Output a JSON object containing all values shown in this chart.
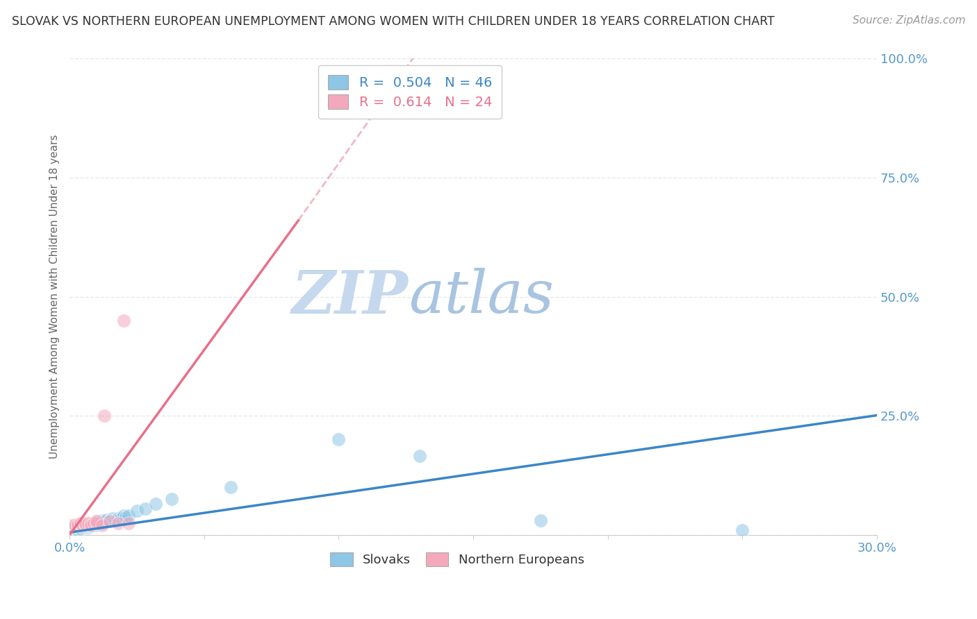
{
  "title": "SLOVAK VS NORTHERN EUROPEAN UNEMPLOYMENT AMONG WOMEN WITH CHILDREN UNDER 18 YEARS CORRELATION CHART",
  "source": "Source: ZipAtlas.com",
  "ylabel": "Unemployment Among Women with Children Under 18 years",
  "xlim": [
    0.0,
    0.3
  ],
  "ylim": [
    0.0,
    1.0
  ],
  "x_ticks": [
    0.0,
    0.05,
    0.1,
    0.15,
    0.2,
    0.25,
    0.3
  ],
  "x_tick_labels": [
    "0.0%",
    "",
    "",
    "",
    "",
    "",
    "30.0%"
  ],
  "y_ticks": [
    0.0,
    0.25,
    0.5,
    0.75,
    1.0
  ],
  "y_tick_labels": [
    "",
    "25.0%",
    "50.0%",
    "75.0%",
    "100.0%"
  ],
  "slovaks_R": "0.504",
  "slovaks_N": "46",
  "northern_R": "0.614",
  "northern_N": "24",
  "color_blue": "#8ec6e6",
  "color_pink": "#f4a8bc",
  "color_blue_line": "#3a86c8",
  "color_pink_line": "#e8708a",
  "color_axis_labels": "#5599cc",
  "color_title": "#333333",
  "color_watermark_zip": "#c5d8ee",
  "color_watermark_atlas": "#a8c4e0",
  "grid_color": "#e8e8e8",
  "background_color": "#ffffff",
  "slovaks_x": [
    0.001,
    0.001,
    0.002,
    0.002,
    0.003,
    0.003,
    0.003,
    0.004,
    0.004,
    0.004,
    0.005,
    0.005,
    0.005,
    0.006,
    0.006,
    0.007,
    0.007,
    0.007,
    0.008,
    0.008,
    0.009,
    0.009,
    0.01,
    0.01,
    0.011,
    0.012,
    0.012,
    0.013,
    0.014,
    0.015,
    0.016,
    0.017,
    0.018,
    0.019,
    0.02,
    0.021,
    0.022,
    0.025,
    0.028,
    0.032,
    0.038,
    0.06,
    0.1,
    0.13,
    0.175,
    0.25
  ],
  "slovaks_y": [
    0.01,
    0.015,
    0.012,
    0.018,
    0.015,
    0.02,
    0.01,
    0.012,
    0.018,
    0.022,
    0.015,
    0.02,
    0.025,
    0.018,
    0.022,
    0.015,
    0.02,
    0.025,
    0.018,
    0.022,
    0.02,
    0.025,
    0.022,
    0.028,
    0.025,
    0.025,
    0.03,
    0.028,
    0.032,
    0.03,
    0.035,
    0.03,
    0.035,
    0.035,
    0.04,
    0.038,
    0.04,
    0.05,
    0.055,
    0.065,
    0.075,
    0.1,
    0.2,
    0.165,
    0.03,
    0.01
  ],
  "northern_x": [
    0.001,
    0.001,
    0.002,
    0.002,
    0.003,
    0.003,
    0.004,
    0.004,
    0.005,
    0.005,
    0.006,
    0.006,
    0.007,
    0.008,
    0.008,
    0.009,
    0.01,
    0.01,
    0.012,
    0.013,
    0.015,
    0.018,
    0.02,
    0.022
  ],
  "northern_y": [
    0.015,
    0.02,
    0.018,
    0.022,
    0.02,
    0.022,
    0.022,
    0.025,
    0.018,
    0.022,
    0.022,
    0.025,
    0.025,
    0.025,
    0.02,
    0.025,
    0.025,
    0.028,
    0.02,
    0.25,
    0.028,
    0.025,
    0.45,
    0.025
  ],
  "pink_line_x_start": 0.0,
  "pink_line_x_solid_end": 0.085,
  "pink_line_x_end": 0.3,
  "pink_line_slope": 8.0,
  "pink_line_intercept": -0.02,
  "blue_line_slope": 0.82,
  "blue_line_intercept": 0.005
}
